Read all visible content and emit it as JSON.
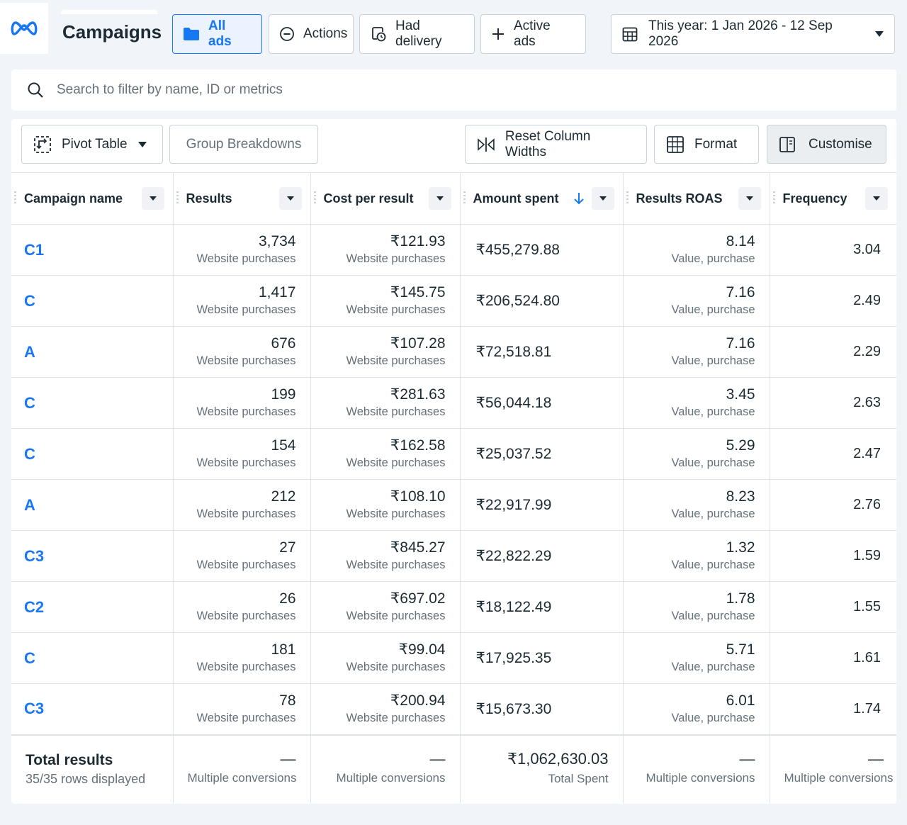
{
  "header": {
    "title": "Campaigns",
    "chips": {
      "all_ads": "All ads",
      "actions": "Actions",
      "had_delivery": "Had delivery",
      "active_ads": "Active ads"
    },
    "date_range": "This year: 1 Jan 2026 - 12 Sep 2026"
  },
  "search": {
    "placeholder": "Search to filter by name, ID or metrics"
  },
  "toolbar": {
    "pivot_table": "Pivot Table",
    "group_breakdowns": "Group Breakdowns",
    "reset_column_widths": "Reset Column Widths",
    "format": "Format",
    "customise": "Customise"
  },
  "table": {
    "columns": {
      "campaign_name": "Campaign name",
      "results": "Results",
      "cost_per_result": "Cost per result",
      "amount_spent": "Amount spent",
      "results_roas": "Results ROAS",
      "frequency": "Frequency"
    },
    "rows": [
      {
        "name": "C1",
        "results": "3,734",
        "results_sub": "Website purchases",
        "cpr": "₹121.93",
        "cpr_sub": "Website purchases",
        "amount": "₹455,279.88",
        "roas": "8.14",
        "roas_sub": "Value, purchase",
        "freq": "3.04"
      },
      {
        "name": "C",
        "results": "1,417",
        "results_sub": "Website purchases",
        "cpr": "₹145.75",
        "cpr_sub": "Website purchases",
        "amount": "₹206,524.80",
        "roas": "7.16",
        "roas_sub": "Value, purchase",
        "freq": "2.49"
      },
      {
        "name": "A",
        "results": "676",
        "results_sub": "Website purchases",
        "cpr": "₹107.28",
        "cpr_sub": "Website purchases",
        "amount": "₹72,518.81",
        "roas": "7.16",
        "roas_sub": "Value, purchase",
        "freq": "2.29"
      },
      {
        "name": "C",
        "results": "199",
        "results_sub": "Website purchases",
        "cpr": "₹281.63",
        "cpr_sub": "Website purchases",
        "amount": "₹56,044.18",
        "roas": "3.45",
        "roas_sub": "Value, purchase",
        "freq": "2.63"
      },
      {
        "name": "C",
        "results": "154",
        "results_sub": "Website purchases",
        "cpr": "₹162.58",
        "cpr_sub": "Website purchases",
        "amount": "₹25,037.52",
        "roas": "5.29",
        "roas_sub": "Value, purchase",
        "freq": "2.47"
      },
      {
        "name": "A",
        "results": "212",
        "results_sub": "Website purchases",
        "cpr": "₹108.10",
        "cpr_sub": "Website purchases",
        "amount": "₹22,917.99",
        "roas": "8.23",
        "roas_sub": "Value, purchase",
        "freq": "2.76"
      },
      {
        "name": "C3",
        "results": "27",
        "results_sub": "Website purchases",
        "cpr": "₹845.27",
        "cpr_sub": "Website purchases",
        "amount": "₹22,822.29",
        "roas": "1.32",
        "roas_sub": "Value, purchase",
        "freq": "1.59"
      },
      {
        "name": "C2",
        "results": "26",
        "results_sub": "Website purchases",
        "cpr": "₹697.02",
        "cpr_sub": "Website purchases",
        "amount": "₹18,122.49",
        "roas": "1.78",
        "roas_sub": "Value, purchase",
        "freq": "1.55"
      },
      {
        "name": "C",
        "results": "181",
        "results_sub": "Website purchases",
        "cpr": "₹99.04",
        "cpr_sub": "Website purchases",
        "amount": "₹17,925.35",
        "roas": "5.71",
        "roas_sub": "Value, purchase",
        "freq": "1.61"
      },
      {
        "name": "C3",
        "results": "78",
        "results_sub": "Website purchases",
        "cpr": "₹200.94",
        "cpr_sub": "Website purchases",
        "amount": "₹15,673.30",
        "roas": "6.01",
        "roas_sub": "Value, purchase",
        "freq": "1.74"
      }
    ],
    "totals": {
      "title": "Total results",
      "rows_displayed": "35/35 rows displayed",
      "dash": "—",
      "multiple_conversions": "Multiple conversions",
      "amount_total": "₹1,062,630.03",
      "amount_total_sub": "Total Spent"
    }
  },
  "colors": {
    "accent": "#1877f2",
    "text": "#1c2b33",
    "muted": "#65707b",
    "border": "#dfe3e8",
    "page_bg": "#f1f4f8"
  },
  "icons": [
    "meta-logo",
    "folder-icon",
    "actions-circle-icon",
    "had-delivery-icon",
    "plus-icon",
    "calendar-icon",
    "caret-down-icon",
    "search-icon",
    "pivot-table-icon",
    "reset-widths-icon",
    "format-icon",
    "customise-columns-icon",
    "sort-desc-arrow-icon"
  ]
}
